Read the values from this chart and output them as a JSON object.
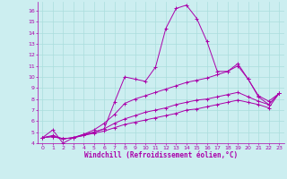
{
  "xlabel": "Windchill (Refroidissement éolien,°C)",
  "xlim": [
    -0.5,
    23.5
  ],
  "ylim": [
    4,
    16.8
  ],
  "xticks": [
    0,
    1,
    2,
    3,
    4,
    5,
    6,
    7,
    8,
    9,
    10,
    11,
    12,
    13,
    14,
    15,
    16,
    17,
    18,
    19,
    20,
    21,
    22,
    23
  ],
  "yticks": [
    4,
    5,
    6,
    7,
    8,
    9,
    10,
    11,
    12,
    13,
    14,
    15,
    16
  ],
  "bg_color": "#cceef0",
  "line_color": "#aa00aa",
  "grid_color": "#aadddd",
  "lines": [
    {
      "x": [
        0,
        1,
        2,
        3,
        4,
        5,
        6,
        7,
        8,
        9,
        10,
        11,
        12,
        13,
        14,
        15,
        16,
        17,
        18,
        19,
        20,
        21,
        22,
        23
      ],
      "y": [
        4.5,
        5.2,
        4.0,
        4.5,
        4.8,
        5.0,
        5.3,
        7.7,
        10.0,
        9.8,
        9.6,
        10.9,
        14.4,
        16.2,
        16.5,
        15.3,
        13.2,
        10.5,
        10.5,
        11.2,
        9.8,
        8.2,
        7.5,
        8.5
      ]
    },
    {
      "x": [
        0,
        1,
        2,
        3,
        4,
        5,
        6,
        7,
        8,
        9,
        10,
        11,
        12,
        13,
        14,
        15,
        16,
        17,
        18,
        19,
        20,
        21,
        22,
        23
      ],
      "y": [
        4.5,
        4.7,
        4.4,
        4.5,
        4.8,
        5.2,
        5.8,
        6.6,
        7.6,
        8.0,
        8.3,
        8.6,
        8.9,
        9.2,
        9.5,
        9.7,
        9.9,
        10.2,
        10.5,
        11.0,
        9.8,
        8.3,
        7.8,
        8.5
      ]
    },
    {
      "x": [
        0,
        1,
        2,
        3,
        4,
        5,
        6,
        7,
        8,
        9,
        10,
        11,
        12,
        13,
        14,
        15,
        16,
        17,
        18,
        19,
        20,
        21,
        22,
        23
      ],
      "y": [
        4.5,
        4.6,
        4.4,
        4.5,
        4.7,
        5.0,
        5.3,
        5.8,
        6.2,
        6.5,
        6.8,
        7.0,
        7.2,
        7.5,
        7.7,
        7.9,
        8.0,
        8.2,
        8.4,
        8.6,
        8.2,
        7.8,
        7.5,
        8.5
      ]
    },
    {
      "x": [
        0,
        1,
        2,
        3,
        4,
        5,
        6,
        7,
        8,
        9,
        10,
        11,
        12,
        13,
        14,
        15,
        16,
        17,
        18,
        19,
        20,
        21,
        22,
        23
      ],
      "y": [
        4.5,
        4.6,
        4.4,
        4.5,
        4.7,
        4.9,
        5.1,
        5.4,
        5.7,
        5.9,
        6.1,
        6.3,
        6.5,
        6.7,
        7.0,
        7.1,
        7.3,
        7.5,
        7.7,
        7.9,
        7.7,
        7.5,
        7.2,
        8.5
      ]
    }
  ]
}
